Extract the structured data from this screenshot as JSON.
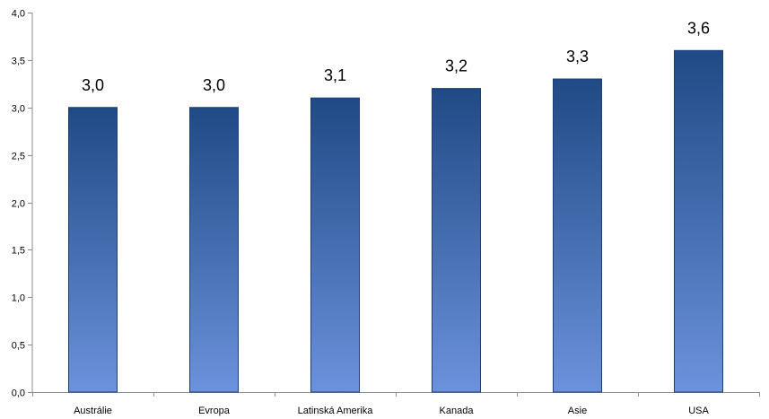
{
  "chart_data": {
    "type": "bar",
    "categories": [
      "Austrálie",
      "Evropa",
      "Latinská Amerika",
      "Kanada",
      "Asie",
      "USA"
    ],
    "values": [
      3.0,
      3.0,
      3.1,
      3.2,
      3.3,
      3.6
    ],
    "data_labels": [
      "3,0",
      "3,0",
      "3,1",
      "3,2",
      "3,3",
      "3,6"
    ],
    "title": "",
    "xlabel": "",
    "ylabel": "",
    "ylim": [
      0,
      4
    ],
    "yticks": [
      0,
      0.5,
      1,
      1.5,
      2,
      2.5,
      3,
      3.5,
      4
    ],
    "ytick_labels": [
      "0,0",
      "0,5",
      "1,0",
      "1,5",
      "2,0",
      "2,5",
      "3,0",
      "3,5",
      "4,0"
    ],
    "grid": false,
    "legend": "none",
    "colors": {
      "bar_top": "#1f4a85",
      "bar_bottom": "#6b92dc",
      "axis": "#8c8c8c"
    }
  }
}
